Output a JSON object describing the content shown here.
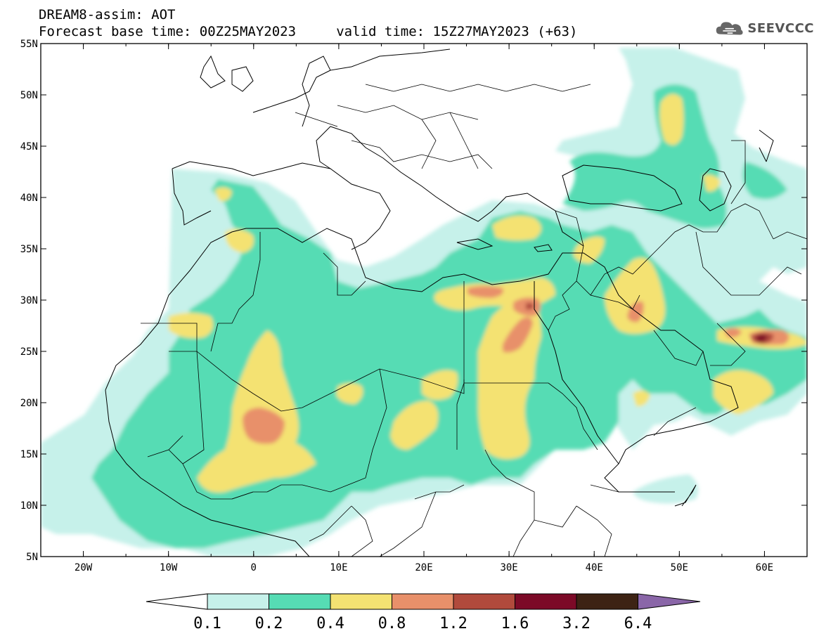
{
  "title": {
    "line1": "DREAM8-assim: AOT",
    "line2": "Forecast base time: 00Z25MAY2023     valid time: 15Z27MAY2023 (+63)"
  },
  "logo": {
    "text": "SEEVCCC",
    "icon": "cloud-icon"
  },
  "axes": {
    "x_ticks": [
      "20W",
      "10W",
      "0",
      "10E",
      "20E",
      "30E",
      "40E",
      "50E",
      "60E"
    ],
    "y_ticks": [
      "55N",
      "50N",
      "45N",
      "40N",
      "35N",
      "30N",
      "25N",
      "20N",
      "15N",
      "10N",
      "5N"
    ],
    "lon_range": [
      -25,
      65
    ],
    "lat_range": [
      5,
      55
    ]
  },
  "colorbar": {
    "labels": [
      "0.1",
      "0.2",
      "0.4",
      "0.8",
      "1.2",
      "1.6",
      "3.2",
      "6.4"
    ],
    "colors": [
      "#ffffff",
      "#c6f1ea",
      "#56dcb4",
      "#f4e272",
      "#e8906a",
      "#b14a3c",
      "#7c0a27",
      "#3d2314",
      "#8a66a8"
    ]
  },
  "field_colors": {
    "c1": "#c6f1ea",
    "c2": "#56dcb4",
    "c3": "#f4e272",
    "c4": "#e8906a",
    "c5": "#b14a3c",
    "c6": "#7c0a27"
  }
}
